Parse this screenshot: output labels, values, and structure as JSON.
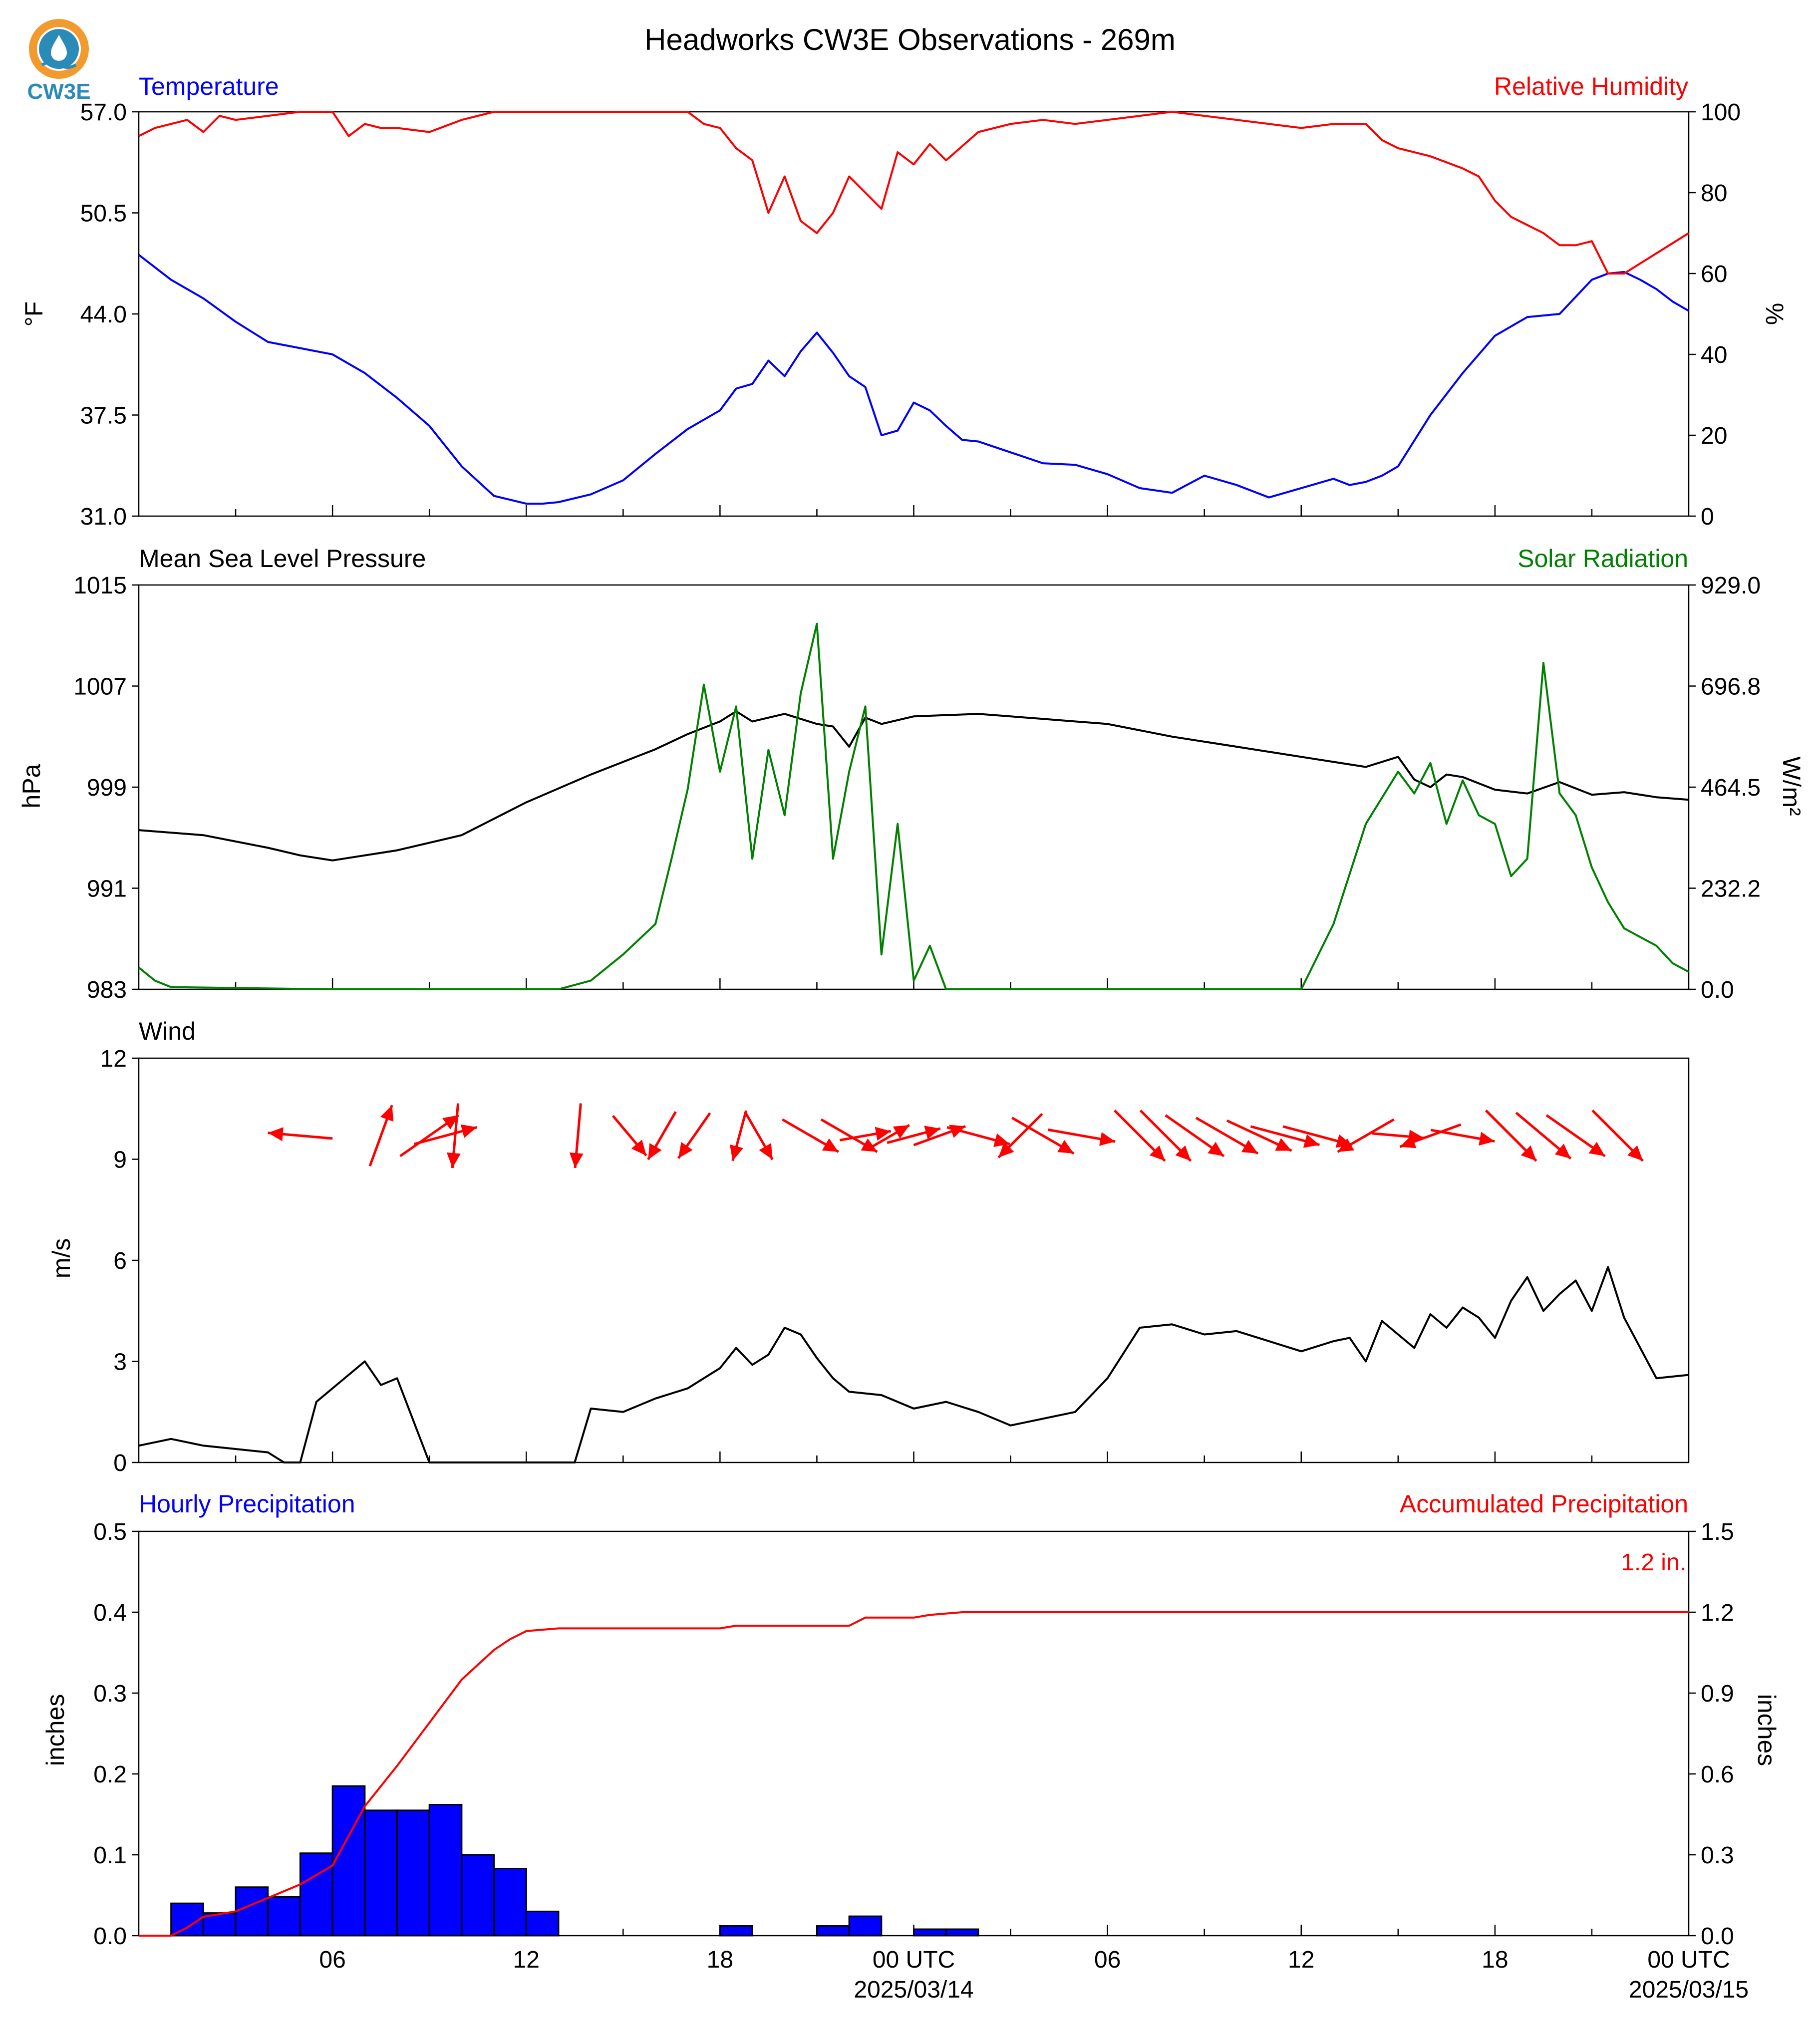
{
  "title": "Headworks CW3E Observations - 269m",
  "logo": {
    "text": "CW3E",
    "colors": {
      "ring": "#f29a2e",
      "drop": "#2a8bb8",
      "waves": "#2a8bb8"
    }
  },
  "colors": {
    "blue": "#0000ff",
    "red": "#ff0000",
    "green": "#008000",
    "black": "#000000"
  },
  "chart_data": [
    {
      "type": "line",
      "panel": "temperature",
      "left_title": "Temperature",
      "right_title": "Relative Humidity",
      "ylabel": "°F",
      "ylabel_right": "%",
      "ylim": [
        31.0,
        57.0
      ],
      "ylim_right": [
        0,
        100
      ],
      "yticks": [
        "31.0",
        "37.5",
        "44.0",
        "50.5",
        "57.0"
      ],
      "yticks_right": [
        "0",
        "20",
        "40",
        "60",
        "80",
        "100"
      ],
      "series": [
        {
          "name": "Temperature",
          "axis": "left",
          "color": "#0000ff",
          "x": [
            0,
            1,
            2,
            3,
            4,
            5,
            6,
            7,
            8,
            9,
            10,
            11,
            12,
            12.5,
            13,
            14,
            15,
            16,
            17,
            18,
            18.5,
            19,
            19.5,
            20,
            20.5,
            21,
            21.5,
            22,
            22.5,
            23,
            23.5,
            24,
            24.5,
            25,
            25.5,
            26,
            27,
            28,
            29,
            30,
            31,
            32,
            33,
            34,
            35,
            36,
            37,
            37.5,
            38,
            38.5,
            39,
            40,
            41,
            42,
            43,
            44,
            45,
            45.5,
            46,
            46.5,
            47,
            47.5,
            48
          ],
          "values": [
            47.8,
            46.2,
            45.0,
            43.5,
            42.2,
            41.8,
            41.4,
            40.2,
            38.6,
            36.8,
            34.2,
            32.3,
            31.8,
            31.8,
            31.9,
            32.4,
            33.3,
            35.0,
            36.6,
            37.8,
            39.2,
            39.5,
            41.0,
            40.0,
            41.6,
            42.8,
            41.5,
            40.0,
            39.3,
            36.2,
            36.5,
            38.3,
            37.8,
            36.8,
            35.9,
            35.8,
            35.1,
            34.4,
            34.3,
            33.7,
            32.8,
            32.5,
            33.6,
            33.0,
            32.2,
            32.8,
            33.4,
            33.0,
            33.2,
            33.6,
            34.2,
            37.5,
            40.2,
            42.6,
            43.8,
            44.0,
            46.2,
            46.6,
            46.7,
            46.2,
            45.6,
            44.8,
            44.2
          ]
        },
        {
          "name": "Relative Humidity",
          "axis": "right",
          "color": "#ff0000",
          "x": [
            0,
            0.5,
            1,
            1.5,
            2,
            2.5,
            3,
            4,
            5,
            6,
            6.5,
            7,
            7.5,
            8,
            9,
            10,
            11,
            12,
            13,
            14,
            15,
            16,
            17,
            17.5,
            18,
            18.5,
            19,
            19.5,
            20,
            20.5,
            21,
            21.5,
            22,
            22.5,
            23,
            23.5,
            24,
            24.5,
            25,
            26,
            27,
            28,
            29,
            30,
            31,
            32,
            33,
            34,
            35,
            36,
            37,
            38,
            38.5,
            39,
            40,
            41,
            41.5,
            42,
            42.5,
            43,
            43.5,
            44,
            44.5,
            45,
            45.5,
            46,
            47,
            48
          ],
          "values": [
            94,
            96,
            97,
            98,
            95,
            99,
            98,
            99,
            100,
            100,
            94,
            97,
            96,
            96,
            95,
            98,
            100,
            100,
            100,
            100,
            100,
            100,
            100,
            97,
            96,
            91,
            88,
            75,
            84,
            73,
            70,
            75,
            84,
            80,
            76,
            90,
            87,
            92,
            88,
            95,
            97,
            98,
            97,
            98,
            99,
            100,
            99,
            98,
            97,
            96,
            97,
            97,
            93,
            91,
            89,
            86,
            84,
            78,
            74,
            72,
            70,
            67,
            67,
            68,
            60,
            60,
            65,
            70
          ]
        }
      ]
    },
    {
      "type": "line",
      "panel": "pressure",
      "left_title": "Mean Sea Level Pressure",
      "right_title": "Solar Radiation",
      "ylabel": "hPa",
      "ylabel_right": "W/m²",
      "ylim": [
        983,
        1015
      ],
      "ylim_right": [
        0.0,
        929.0
      ],
      "yticks": [
        "983",
        "991",
        "999",
        "1007",
        "1015"
      ],
      "yticks_right": [
        "0.0",
        "232.2",
        "464.5",
        "696.8",
        "929.0"
      ],
      "series": [
        {
          "name": "Mean Sea Level Pressure",
          "axis": "left",
          "color": "#000000",
          "x": [
            0,
            2,
            4,
            5,
            6,
            7,
            8,
            10,
            12,
            14,
            16,
            17,
            18,
            18.5,
            19,
            20,
            21,
            21.5,
            22,
            22.5,
            23,
            24,
            26,
            28,
            30,
            32,
            34,
            36,
            38,
            39,
            39.5,
            40,
            40.5,
            41,
            42,
            43,
            44,
            45,
            46,
            47,
            48
          ],
          "values": [
            995.6,
            995.2,
            994.2,
            993.6,
            993.2,
            993.6,
            994.0,
            995.2,
            997.8,
            1000.0,
            1002.0,
            1003.2,
            1004.2,
            1005.0,
            1004.2,
            1004.8,
            1004.0,
            1003.8,
            1002.2,
            1004.5,
            1004.0,
            1004.6,
            1004.8,
            1004.4,
            1004.0,
            1003.0,
            1002.2,
            1001.4,
            1000.6,
            1001.4,
            999.6,
            999.0,
            1000.0,
            999.8,
            998.8,
            998.5,
            999.4,
            998.4,
            998.6,
            998.2,
            998.0
          ]
        },
        {
          "name": "Solar Radiation",
          "axis": "right",
          "color": "#008000",
          "x": [
            0,
            0.5,
            1,
            6,
            12,
            13,
            14,
            15,
            16,
            16.5,
            17,
            17.5,
            18,
            18.5,
            19,
            19.5,
            20,
            20.5,
            21,
            21.5,
            22,
            22.5,
            23,
            23.5,
            24,
            24.5,
            25,
            26,
            36,
            37,
            38,
            39,
            39.5,
            40,
            40.5,
            41,
            41.5,
            42,
            42.5,
            43,
            43.5,
            44,
            44.5,
            45,
            45.5,
            46,
            46.5,
            47,
            47.5,
            48
          ],
          "values": [
            50,
            20,
            5,
            0,
            0,
            0,
            20,
            80,
            150,
            300,
            460,
            700,
            500,
            650,
            300,
            550,
            400,
            680,
            840,
            300,
            500,
            650,
            80,
            380,
            20,
            100,
            0,
            0,
            0,
            150,
            380,
            500,
            450,
            520,
            380,
            480,
            400,
            380,
            260,
            300,
            750,
            450,
            400,
            280,
            200,
            140,
            120,
            100,
            60,
            40
          ]
        }
      ]
    },
    {
      "type": "line",
      "panel": "wind",
      "left_title": "Wind",
      "ylabel": "m/s",
      "ylim": [
        0,
        12
      ],
      "yticks": [
        "0",
        "3",
        "6",
        "9",
        "12"
      ],
      "series": [
        {
          "name": "Wind",
          "axis": "left",
          "color": "#000000",
          "x": [
            0,
            1,
            2,
            3,
            4,
            4.5,
            5,
            5.5,
            6,
            7,
            7.5,
            8,
            9,
            10,
            11,
            12,
            13,
            13.5,
            14,
            15,
            16,
            17,
            18,
            18.5,
            19,
            19.5,
            20,
            20.5,
            21,
            21.5,
            22,
            23,
            24,
            25,
            26,
            27,
            28,
            29,
            30,
            31,
            32,
            33,
            34,
            35,
            36,
            37,
            37.5,
            38,
            38.5,
            39,
            39.5,
            40,
            40.5,
            41,
            41.5,
            42,
            42.5,
            43,
            43.5,
            44,
            44.5,
            45,
            45.5,
            46,
            47,
            48
          ],
          "values": [
            0.5,
            0.7,
            0.5,
            0.4,
            0.3,
            0,
            0,
            1.8,
            2.2,
            3.0,
            2.3,
            2.5,
            0,
            0,
            0,
            0,
            0,
            0,
            1.6,
            1.5,
            1.9,
            2.2,
            2.8,
            3.4,
            2.9,
            3.2,
            4.0,
            3.8,
            3.1,
            2.5,
            2.1,
            2.0,
            1.6,
            1.8,
            1.5,
            1.1,
            1.3,
            1.5,
            2.5,
            4.0,
            4.1,
            3.8,
            3.9,
            3.6,
            3.3,
            3.6,
            3.7,
            3.0,
            4.2,
            3.8,
            3.4,
            4.4,
            4.0,
            4.6,
            4.3,
            3.7,
            4.8,
            5.5,
            4.5,
            5.0,
            5.4,
            4.5,
            5.8,
            4.3,
            2.5,
            2.6
          ]
        }
      ]
    },
    {
      "type": "bar",
      "panel": "precipitation",
      "left_title": "Hourly Precipitation",
      "right_title": "Accumulated Precipitation",
      "annotation": "1.2 in.",
      "ylabel": "inches",
      "ylabel_right": "inches",
      "ylim": [
        0.0,
        0.5
      ],
      "ylim_right": [
        0.0,
        1.5
      ],
      "yticks": [
        "0.0",
        "0.1",
        "0.2",
        "0.3",
        "0.4",
        "0.5"
      ],
      "yticks_right": [
        "0.0",
        "0.3",
        "0.6",
        "0.9",
        "1.2",
        "1.5"
      ],
      "series": [
        {
          "name": "Hourly Precipitation",
          "axis": "left",
          "color": "#0000ff",
          "x": [
            1,
            2,
            3,
            4,
            5,
            6,
            7,
            8,
            9,
            10,
            11,
            12,
            13,
            18,
            21,
            22,
            24,
            25
          ],
          "values": [
            0.04,
            0.028,
            0.06,
            0.048,
            0.102,
            0.185,
            0.155,
            0.155,
            0.162,
            0.1,
            0.083,
            0.03,
            0,
            0.012,
            0.012,
            0.024,
            0.008,
            0.008
          ]
        },
        {
          "name": "Accumulated Precipitation",
          "axis": "right",
          "color": "#ff0000",
          "x": [
            0,
            1,
            1.5,
            2,
            3,
            4,
            5,
            6,
            7,
            8,
            9,
            10,
            11,
            11.5,
            12,
            13,
            14,
            18,
            18.5,
            22,
            22.5,
            24,
            24.5,
            25.5,
            48
          ],
          "values": [
            0,
            0,
            0.03,
            0.07,
            0.09,
            0.14,
            0.19,
            0.26,
            0.48,
            0.63,
            0.79,
            0.95,
            1.06,
            1.1,
            1.13,
            1.14,
            1.14,
            1.14,
            1.15,
            1.15,
            1.18,
            1.18,
            1.19,
            1.2,
            1.2
          ]
        }
      ]
    }
  ],
  "wind_barbs": [
    {
      "x": 5.0,
      "speed": 2.0,
      "dir": 95
    },
    {
      "x": 7.5,
      "speed": 2.0,
      "dir": 200
    },
    {
      "x": 9.0,
      "speed": 2.2,
      "dir": 235
    },
    {
      "x": 9.5,
      "speed": 2.0,
      "dir": 255
    },
    {
      "x": 9.8,
      "speed": 2.0,
      "dir": 5
    },
    {
      "x": 13.6,
      "speed": 2.0,
      "dir": 5
    },
    {
      "x": 15.2,
      "speed": 1.6,
      "dir": 320
    },
    {
      "x": 16.2,
      "speed": 1.7,
      "dir": 30
    },
    {
      "x": 17.2,
      "speed": 1.7,
      "dir": 35
    },
    {
      "x": 18.6,
      "speed": 1.6,
      "dir": 15
    },
    {
      "x": 19.2,
      "speed": 1.7,
      "dir": 330
    },
    {
      "x": 20.8,
      "speed": 2.0,
      "dir": 300
    },
    {
      "x": 22.0,
      "speed": 2.0,
      "dir": 300
    },
    {
      "x": 22.5,
      "speed": 1.6,
      "dir": 260
    },
    {
      "x": 23.3,
      "speed": 1.3,
      "dir": 240
    },
    {
      "x": 24.0,
      "speed": 1.7,
      "dir": 255
    },
    {
      "x": 24.8,
      "speed": 1.7,
      "dir": 250
    },
    {
      "x": 26.0,
      "speed": 2.0,
      "dir": 285
    },
    {
      "x": 27.3,
      "speed": 1.9,
      "dir": 45
    },
    {
      "x": 28.0,
      "speed": 2.2,
      "dir": 300
    },
    {
      "x": 29.2,
      "speed": 2.1,
      "dir": 280
    },
    {
      "x": 31.0,
      "speed": 2.2,
      "dir": 315
    },
    {
      "x": 31.8,
      "speed": 2.2,
      "dir": 315
    },
    {
      "x": 32.7,
      "speed": 2.2,
      "dir": 305
    },
    {
      "x": 33.7,
      "speed": 2.2,
      "dir": 300
    },
    {
      "x": 34.7,
      "speed": 2.2,
      "dir": 295
    },
    {
      "x": 35.5,
      "speed": 2.2,
      "dir": 285
    },
    {
      "x": 36.5,
      "speed": 2.2,
      "dir": 285
    },
    {
      "x": 38.0,
      "speed": 2.0,
      "dir": 60
    },
    {
      "x": 39.0,
      "speed": 1.6,
      "dir": 275
    },
    {
      "x": 40.0,
      "speed": 2.0,
      "dir": 70
    },
    {
      "x": 41.0,
      "speed": 2.0,
      "dir": 280
    },
    {
      "x": 42.5,
      "speed": 2.2,
      "dir": 315
    },
    {
      "x": 43.5,
      "speed": 2.2,
      "dir": 310
    },
    {
      "x": 44.5,
      "speed": 2.2,
      "dir": 305
    },
    {
      "x": 45.8,
      "speed": 2.2,
      "dir": 315
    }
  ],
  "x_axis": {
    "range_hours": [
      0,
      48
    ],
    "minor_every_hours": 3,
    "ticks": [
      {
        "hour": 6,
        "label": "06",
        "sub": ""
      },
      {
        "hour": 12,
        "label": "12",
        "sub": ""
      },
      {
        "hour": 18,
        "label": "18",
        "sub": ""
      },
      {
        "hour": 24,
        "label": "00 UTC",
        "sub": "2025/03/14"
      },
      {
        "hour": 30,
        "label": "06",
        "sub": ""
      },
      {
        "hour": 36,
        "label": "12",
        "sub": ""
      },
      {
        "hour": 42,
        "label": "18",
        "sub": ""
      },
      {
        "hour": 48,
        "label": "00 UTC",
        "sub": "2025/03/15"
      }
    ]
  }
}
